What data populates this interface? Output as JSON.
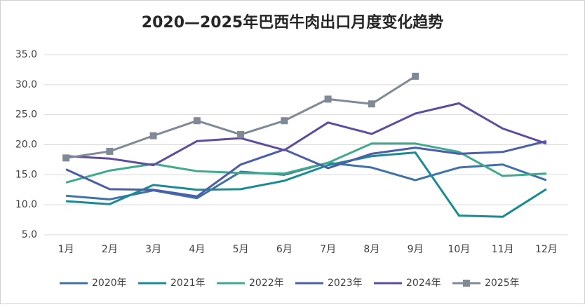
{
  "chart_data": {
    "type": "line",
    "title": "2020—2025年巴西牛肉出口月度变化趋势",
    "categories": [
      "1月",
      "2月",
      "3月",
      "4月",
      "5月",
      "6月",
      "7月",
      "8月",
      "9月",
      "10月",
      "11月",
      "12月"
    ],
    "series": [
      {
        "name": "2020年",
        "color": "#3f72a6",
        "values": [
          11.5,
          10.9,
          12.4,
          11.1,
          15.5,
          15.0,
          17.0,
          16.2,
          14.1,
          16.2,
          16.7,
          14.1
        ]
      },
      {
        "name": "2021年",
        "color": "#1b8b93",
        "values": [
          10.6,
          10.1,
          13.3,
          12.5,
          12.6,
          14.0,
          16.6,
          18.1,
          18.7,
          8.2,
          8.0,
          12.6
        ]
      },
      {
        "name": "2022年",
        "color": "#3faa8e",
        "values": [
          13.7,
          15.7,
          16.8,
          15.6,
          15.3,
          15.2,
          17.0,
          20.2,
          20.2,
          18.8,
          14.8,
          15.2
        ]
      },
      {
        "name": "2023年",
        "color": "#4b5ea8",
        "values": [
          15.9,
          12.6,
          12.5,
          11.4,
          16.7,
          19.2,
          16.1,
          18.5,
          19.5,
          18.5,
          18.8,
          20.6
        ]
      },
      {
        "name": "2024年",
        "color": "#5e4c9f",
        "values": [
          18.1,
          17.7,
          16.6,
          20.6,
          21.1,
          19.1,
          23.7,
          21.8,
          25.2,
          26.9,
          22.7,
          20.2
        ]
      },
      {
        "name": "2025年",
        "color": "#7f8a96",
        "marker": "square",
        "values": [
          17.8,
          18.9,
          21.5,
          24.0,
          21.7,
          24.0,
          27.6,
          26.8,
          31.4,
          null,
          null,
          null
        ]
      }
    ],
    "ylim": [
      5,
      35
    ],
    "yticks": [
      {
        "value": 5,
        "label": "5.0"
      },
      {
        "value": 10,
        "label": "10.0"
      },
      {
        "value": 15,
        "label": "15.0"
      },
      {
        "value": 20,
        "label": "20.0"
      },
      {
        "value": 25,
        "label": "25.0"
      },
      {
        "value": 30,
        "label": "30.0"
      },
      {
        "value": 35,
        "label": "35.0"
      }
    ],
    "grid": true,
    "legend": "bottom"
  }
}
